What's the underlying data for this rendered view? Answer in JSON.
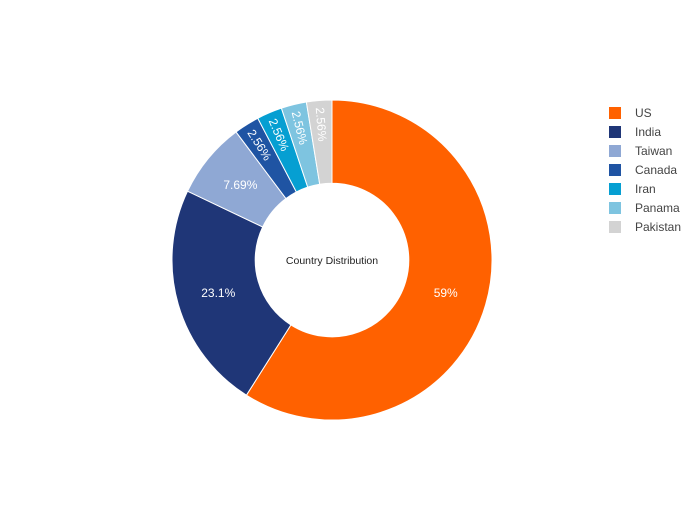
{
  "chart_data": {
    "type": "pie",
    "hole": 0.48,
    "center_label": "Country Distribution",
    "legend_position": "right",
    "slices": [
      {
        "label": "US",
        "value": 59.0,
        "text": "59%",
        "color": "#ff6100"
      },
      {
        "label": "India",
        "value": 23.1,
        "text": "23.1%",
        "color": "#1f3677"
      },
      {
        "label": "Taiwan",
        "value": 7.69,
        "text": "7.69%",
        "color": "#8fa8d4"
      },
      {
        "label": "Canada",
        "value": 2.56,
        "text": "2.56%",
        "color": "#1f54a3"
      },
      {
        "label": "Iran",
        "value": 2.56,
        "text": "2.56%",
        "color": "#069fd2"
      },
      {
        "label": "Panama",
        "value": 2.56,
        "text": "2.56%",
        "color": "#7ec4e0"
      },
      {
        "label": "Pakistan",
        "value": 2.56,
        "text": "2.56%",
        "color": "#d3d3d3"
      }
    ]
  }
}
